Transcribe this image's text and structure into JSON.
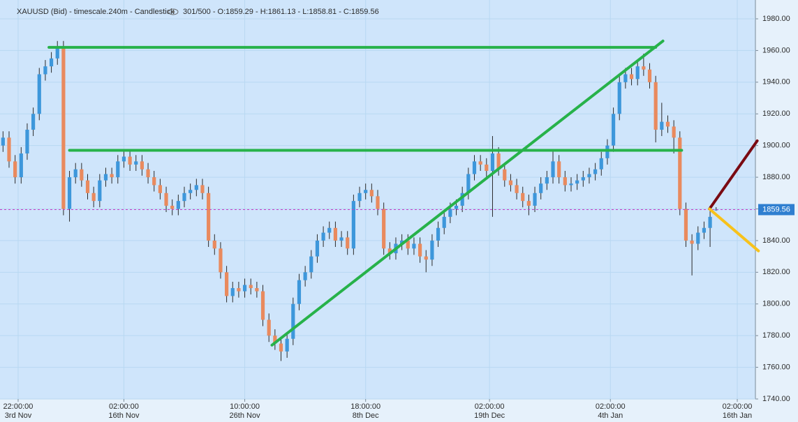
{
  "header": {
    "symbol": "XAUUSD (Bid) - timescale.240m - Candlestick",
    "stats": "301/500 - O:1859.29 - H:1861.13 - L:1858.81 - C:1859.56"
  },
  "chart_data": {
    "type": "candlestick",
    "up_color": "#3d97db",
    "down_color": "#e98a5e",
    "wick_color": "#2a2a2a",
    "ylim": [
      1740,
      1980
    ],
    "yticks": [
      {
        "value": 1740,
        "label": "1740.00"
      },
      {
        "value": 1760,
        "label": "1760.00"
      },
      {
        "value": 1780,
        "label": "1780.00"
      },
      {
        "value": 1800,
        "label": "1800.00"
      },
      {
        "value": 1820,
        "label": "1820.00"
      },
      {
        "value": 1840,
        "label": "1840.00"
      },
      {
        "value": 1860,
        "label": "1860.00"
      },
      {
        "value": 1880,
        "label": "1880.00"
      },
      {
        "value": 1900,
        "label": "1900.00"
      },
      {
        "value": 1920,
        "label": "1920.00"
      },
      {
        "value": 1940,
        "label": "1940.00"
      },
      {
        "value": 1960,
        "label": "1960.00"
      },
      {
        "value": 1980,
        "label": "1980.00"
      }
    ],
    "xlim": [
      0,
      125
    ],
    "xticks": [
      {
        "value": 3,
        "label": "22:00:00",
        "date": "3rd Nov"
      },
      {
        "value": 20.5,
        "label": "02:00:00",
        "date": "16th Nov"
      },
      {
        "value": 40.5,
        "label": "10:00:00",
        "date": "26th Nov"
      },
      {
        "value": 60.5,
        "label": "18:00:00",
        "date": "8th Dec"
      },
      {
        "value": 81,
        "label": "02:00:00",
        "date": "19th Dec"
      },
      {
        "value": 101,
        "label": "02:00:00",
        "date": "4th Jan"
      },
      {
        "value": 122,
        "label": "02:00:00",
        "date": "16th Jan"
      }
    ],
    "grid": true,
    "last_price": 1859.56,
    "last_price_label": "1859.56",
    "last_price_color": "#c83cc8",
    "ohlc": [
      [
        1900,
        1909,
        1896,
        1905
      ],
      [
        1905,
        1909,
        1886,
        1890
      ],
      [
        1890,
        1894,
        1876,
        1880
      ],
      [
        1880,
        1899,
        1876,
        1895
      ],
      [
        1895,
        1914,
        1891,
        1910
      ],
      [
        1910,
        1924,
        1906,
        1920
      ],
      [
        1920,
        1949,
        1916,
        1945
      ],
      [
        1945,
        1954,
        1941,
        1950
      ],
      [
        1950,
        1959,
        1946,
        1955
      ],
      [
        1955,
        1966,
        1951,
        1962
      ],
      [
        1962,
        1966,
        1856,
        1860
      ],
      [
        1860,
        1884,
        1852,
        1880
      ],
      [
        1880,
        1889,
        1876,
        1885
      ],
      [
        1885,
        1889,
        1874,
        1878
      ],
      [
        1878,
        1882,
        1866,
        1870
      ],
      [
        1870,
        1874,
        1861,
        1865
      ],
      [
        1865,
        1882,
        1861,
        1878
      ],
      [
        1878,
        1886,
        1874,
        1882
      ],
      [
        1882,
        1886,
        1876,
        1880
      ],
      [
        1880,
        1894,
        1876,
        1890
      ],
      [
        1890,
        1897,
        1886,
        1893
      ],
      [
        1893,
        1897,
        1884,
        1888
      ],
      [
        1888,
        1894,
        1884,
        1890
      ],
      [
        1890,
        1894,
        1881,
        1885
      ],
      [
        1885,
        1889,
        1876,
        1880
      ],
      [
        1880,
        1884,
        1871,
        1875
      ],
      [
        1875,
        1879,
        1866,
        1870
      ],
      [
        1870,
        1874,
        1858,
        1862
      ],
      [
        1862,
        1866,
        1856,
        1860
      ],
      [
        1860,
        1869,
        1856,
        1865
      ],
      [
        1865,
        1874,
        1861,
        1870
      ],
      [
        1870,
        1876,
        1866,
        1872
      ],
      [
        1872,
        1879,
        1868,
        1875
      ],
      [
        1875,
        1879,
        1866,
        1870
      ],
      [
        1870,
        1874,
        1836,
        1840
      ],
      [
        1840,
        1844,
        1831,
        1835
      ],
      [
        1835,
        1839,
        1816,
        1820
      ],
      [
        1820,
        1824,
        1801,
        1805
      ],
      [
        1805,
        1814,
        1801,
        1810
      ],
      [
        1810,
        1814,
        1804,
        1808
      ],
      [
        1808,
        1816,
        1804,
        1812
      ],
      [
        1812,
        1816,
        1806,
        1810
      ],
      [
        1810,
        1814,
        1804,
        1808
      ],
      [
        1808,
        1812,
        1786,
        1790
      ],
      [
        1790,
        1794,
        1776,
        1780
      ],
      [
        1780,
        1784,
        1771,
        1775
      ],
      [
        1775,
        1779,
        1764,
        1770
      ],
      [
        1770,
        1782,
        1766,
        1778
      ],
      [
        1778,
        1804,
        1774,
        1800
      ],
      [
        1800,
        1819,
        1796,
        1815
      ],
      [
        1815,
        1824,
        1811,
        1820
      ],
      [
        1820,
        1834,
        1816,
        1830
      ],
      [
        1830,
        1844,
        1826,
        1840
      ],
      [
        1840,
        1849,
        1836,
        1845
      ],
      [
        1845,
        1852,
        1841,
        1848
      ],
      [
        1848,
        1852,
        1836,
        1840
      ],
      [
        1840,
        1846,
        1836,
        1842
      ],
      [
        1842,
        1846,
        1831,
        1835
      ],
      [
        1835,
        1869,
        1831,
        1865
      ],
      [
        1865,
        1874,
        1861,
        1870
      ],
      [
        1870,
        1876,
        1866,
        1872
      ],
      [
        1872,
        1876,
        1864,
        1868
      ],
      [
        1868,
        1872,
        1856,
        1860
      ],
      [
        1860,
        1864,
        1831,
        1835
      ],
      [
        1835,
        1839,
        1828,
        1832
      ],
      [
        1832,
        1842,
        1828,
        1838
      ],
      [
        1838,
        1844,
        1834,
        1840
      ],
      [
        1840,
        1844,
        1831,
        1835
      ],
      [
        1835,
        1842,
        1831,
        1838
      ],
      [
        1838,
        1842,
        1826,
        1830
      ],
      [
        1830,
        1834,
        1820,
        1828
      ],
      [
        1828,
        1844,
        1824,
        1840
      ],
      [
        1840,
        1852,
        1836,
        1848
      ],
      [
        1848,
        1859,
        1844,
        1855
      ],
      [
        1855,
        1864,
        1851,
        1860
      ],
      [
        1860,
        1866,
        1856,
        1862
      ],
      [
        1862,
        1874,
        1858,
        1870
      ],
      [
        1870,
        1886,
        1866,
        1882
      ],
      [
        1882,
        1894,
        1878,
        1890
      ],
      [
        1890,
        1894,
        1884,
        1888
      ],
      [
        1888,
        1892,
        1880,
        1884
      ],
      [
        1884,
        1906,
        1855,
        1895
      ],
      [
        1895,
        1899,
        1881,
        1885
      ],
      [
        1885,
        1889,
        1874,
        1878
      ],
      [
        1878,
        1882,
        1871,
        1875
      ],
      [
        1875,
        1879,
        1866,
        1870
      ],
      [
        1870,
        1874,
        1861,
        1865
      ],
      [
        1865,
        1869,
        1856,
        1862
      ],
      [
        1862,
        1874,
        1858,
        1870
      ],
      [
        1870,
        1880,
        1866,
        1876
      ],
      [
        1876,
        1884,
        1872,
        1880
      ],
      [
        1880,
        1897,
        1876,
        1890
      ],
      [
        1890,
        1894,
        1876,
        1880
      ],
      [
        1880,
        1884,
        1871,
        1875
      ],
      [
        1875,
        1880,
        1871,
        1876
      ],
      [
        1876,
        1882,
        1872,
        1878
      ],
      [
        1878,
        1884,
        1874,
        1880
      ],
      [
        1880,
        1886,
        1876,
        1882
      ],
      [
        1882,
        1889,
        1878,
        1885
      ],
      [
        1885,
        1896,
        1881,
        1892
      ],
      [
        1892,
        1904,
        1888,
        1900
      ],
      [
        1900,
        1924,
        1896,
        1920
      ],
      [
        1920,
        1944,
        1916,
        1940
      ],
      [
        1940,
        1949,
        1936,
        1945
      ],
      [
        1945,
        1949,
        1938,
        1942
      ],
      [
        1942,
        1954,
        1938,
        1950
      ],
      [
        1950,
        1958,
        1944,
        1948
      ],
      [
        1948,
        1952,
        1936,
        1940
      ],
      [
        1940,
        1944,
        1902,
        1910
      ],
      [
        1910,
        1927,
        1906,
        1915
      ],
      [
        1915,
        1919,
        1908,
        1912
      ],
      [
        1912,
        1916,
        1895,
        1905
      ],
      [
        1905,
        1909,
        1856,
        1860
      ],
      [
        1860,
        1864,
        1836,
        1840
      ],
      [
        1840,
        1844,
        1818,
        1838
      ],
      [
        1838,
        1849,
        1834,
        1845
      ],
      [
        1845,
        1852,
        1841,
        1848
      ],
      [
        1848,
        1862,
        1836,
        1855
      ],
      [
        1859.29,
        1861.13,
        1858.81,
        1859.56
      ]
    ],
    "drawings": [
      {
        "color": "#27b24a",
        "x": [
          8.1,
          108.5
        ],
        "y": [
          1962,
          1962
        ]
      },
      {
        "color": "#27b24a",
        "x": [
          11.5,
          112.8
        ],
        "y": [
          1897,
          1897
        ]
      },
      {
        "color": "#27b24a",
        "x": [
          45,
          109.7
        ],
        "y": [
          1774,
          1966
        ]
      },
      {
        "color": "#7a0a12",
        "x": [
          117.4,
          125.3
        ],
        "y": [
          1860,
          1903
        ]
      },
      {
        "color": "#f7c21b",
        "x": [
          117.4,
          125.5
        ],
        "y": [
          1860,
          1833.5
        ]
      }
    ]
  }
}
